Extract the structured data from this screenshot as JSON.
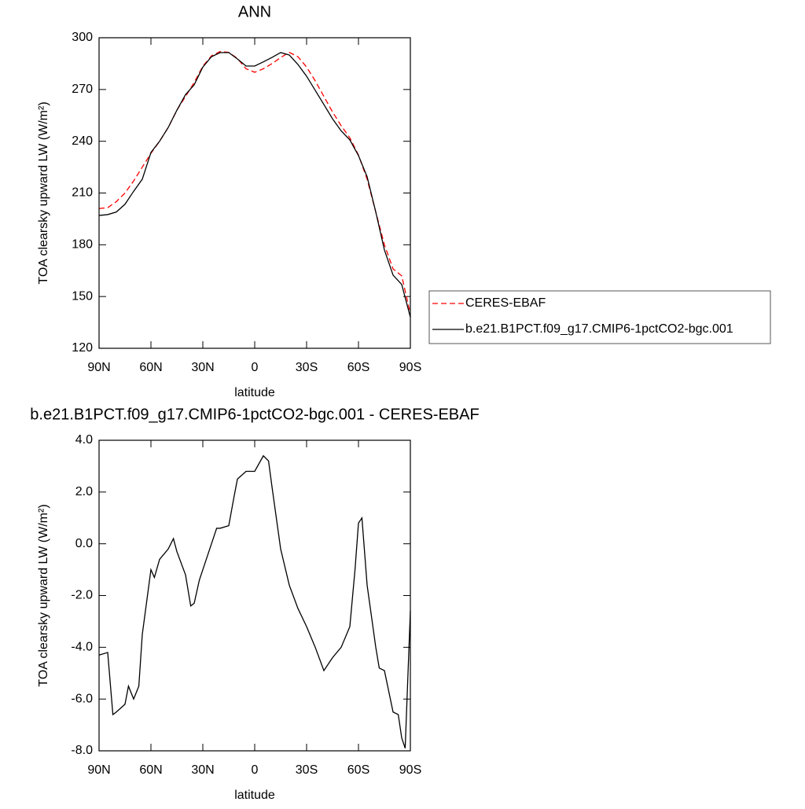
{
  "chart_data": [
    {
      "type": "line",
      "title": "ANN",
      "xlabel": "latitude",
      "ylabel": "TOA clearsky upward LW (W/m²)",
      "x": [
        90,
        85,
        80,
        75,
        70,
        65,
        60,
        55,
        50,
        45,
        40,
        35,
        30,
        25,
        20,
        15,
        10,
        5,
        0,
        -5,
        -10,
        -15,
        -20,
        -25,
        -30,
        -35,
        -40,
        -45,
        -50,
        -55,
        -60,
        -65,
        -70,
        -75,
        -80,
        -85,
        -90
      ],
      "series": [
        {
          "name": "CERES-EBAF",
          "color": "#ff0000",
          "dashed": true,
          "values": [
            201,
            201.5,
            205,
            210,
            217,
            225,
            233,
            240,
            248,
            258,
            266,
            274,
            283.5,
            289.5,
            292,
            291.5,
            288,
            282,
            280,
            282,
            285,
            288.5,
            291.5,
            289,
            283,
            275,
            266,
            257,
            249,
            242,
            232,
            218,
            199,
            180,
            166,
            162,
            140
          ]
        },
        {
          "name": "b.e21.B1PCT.f09_g17.CMIP6-1pctCO2-bgc.001",
          "color": "#000000",
          "dashed": false,
          "values": [
            197,
            197.5,
            199,
            203.5,
            211,
            218,
            233.5,
            240,
            248,
            258,
            267,
            272.7,
            283,
            289,
            291.4,
            291.4,
            287.7,
            283.6,
            283.6,
            286,
            288.6,
            291.4,
            290,
            284.5,
            277.7,
            269.5,
            261.3,
            253,
            246,
            240.8,
            231.7,
            219.4,
            199,
            177,
            162.4,
            157,
            138
          ]
        }
      ],
      "xlim": [
        90,
        -90
      ],
      "xticks": [
        {
          "value": 90,
          "label": "90N"
        },
        {
          "value": 60,
          "label": "60N"
        },
        {
          "value": 30,
          "label": "30N"
        },
        0,
        {
          "value": -30,
          "label": "30S"
        },
        {
          "value": -60,
          "label": "60S"
        },
        {
          "value": -90,
          "label": "90S"
        }
      ],
      "ylim": [
        120,
        300
      ],
      "yticks": [
        120,
        150,
        180,
        210,
        240,
        270,
        300
      ],
      "legend": "right"
    },
    {
      "type": "line",
      "title": "b.e21.B1PCT.f09_g17.CMIP6-1pctCO2-bgc.001 - CERES-EBAF",
      "xlabel": "latitude",
      "ylabel": "TOA clearsky upward LW (W/m²)",
      "x": [
        90,
        85,
        82,
        80,
        75,
        73,
        70,
        67,
        65,
        60,
        58,
        55,
        50,
        47,
        45,
        40,
        37,
        35,
        32,
        30,
        25,
        22,
        20,
        15,
        12,
        10,
        5,
        0,
        -5,
        -8,
        -10,
        -15,
        -20,
        -25,
        -30,
        -35,
        -40,
        -45,
        -50,
        -55,
        -58,
        -60,
        -62,
        -65,
        -70,
        -72,
        -75,
        -80,
        -83,
        -85,
        -87,
        -90
      ],
      "values": [
        -4.3,
        -4.2,
        -6.6,
        -6.5,
        -6.2,
        -5.5,
        -6,
        -5.5,
        -3.5,
        -1,
        -1.3,
        -0.6,
        -0.2,
        0.2,
        -0.3,
        -1.2,
        -2.4,
        -2.3,
        -1.4,
        -1,
        0,
        0.6,
        0.6,
        0.7,
        1.8,
        2.5,
        2.8,
        2.8,
        3.4,
        3.2,
        2.2,
        -0.2,
        -1.6,
        -2.5,
        -3.2,
        -4,
        -4.9,
        -4.4,
        -4,
        -3.2,
        -1,
        0.8,
        1.0,
        -1.6,
        -4,
        -4.8,
        -4.9,
        -6.5,
        -6.6,
        -7.5,
        -7.9,
        -2.6
      ],
      "color": "#000000",
      "xlim": [
        90,
        -90
      ],
      "xticks": [
        {
          "value": 90,
          "label": "90N"
        },
        {
          "value": 60,
          "label": "60N"
        },
        {
          "value": 30,
          "label": "30N"
        },
        0,
        {
          "value": -30,
          "label": "30S"
        },
        {
          "value": -60,
          "label": "60S"
        },
        {
          "value": -90,
          "label": "90S"
        }
      ],
      "ylim": [
        -8,
        4
      ],
      "yticks": [
        {
          "value": -8,
          "label": "-8.0"
        },
        {
          "value": -6,
          "label": "-6.0"
        },
        {
          "value": -4,
          "label": "-4.0"
        },
        {
          "value": -2,
          "label": "-2.0"
        },
        {
          "value": 0,
          "label": "0.0"
        },
        {
          "value": 2,
          "label": "2.0"
        },
        {
          "value": 4,
          "label": "4.0"
        }
      ]
    }
  ]
}
